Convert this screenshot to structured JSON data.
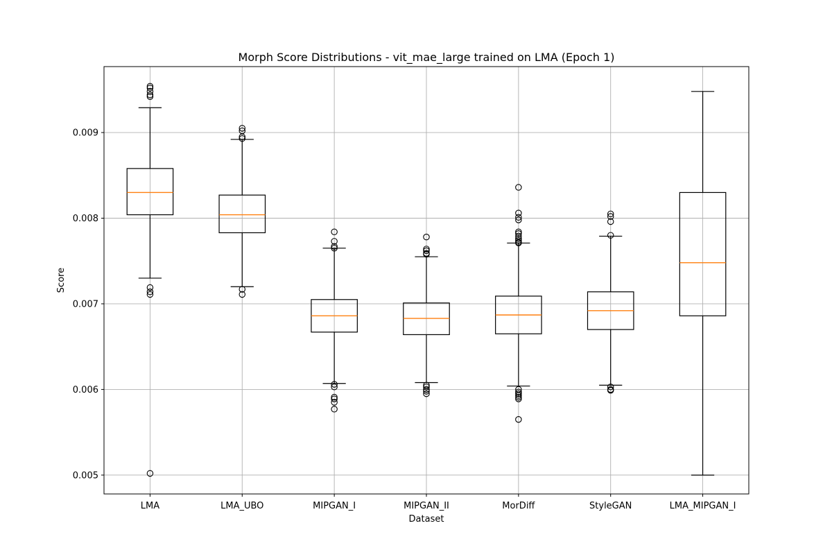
{
  "chart_data": {
    "type": "boxplot",
    "title": "Morph Score Distributions - vit_mae_large trained on LMA (Epoch 1)",
    "xlabel": "Dataset",
    "ylabel": "Score",
    "ylim": [
      0.00478,
      0.00977
    ],
    "yticks": [
      0.005,
      0.006,
      0.007,
      0.008,
      0.009
    ],
    "ytick_labels": [
      "0.005",
      "0.006",
      "0.007",
      "0.008",
      "0.009"
    ],
    "grid": true,
    "colors": {
      "box": "#000000",
      "median": "#ff7f0e",
      "grid": "#b0b0b0"
    },
    "categories": [
      "LMA",
      "LMA_UBO",
      "MIPGAN_I",
      "MIPGAN_II",
      "MorDiff",
      "StyleGAN",
      "LMA_MIPGAN_I"
    ],
    "boxes": [
      {
        "name": "LMA",
        "whislo": 0.0073,
        "q1": 0.00804,
        "med": 0.0083,
        "q3": 0.00858,
        "whishi": 0.00929,
        "fliers": [
          0.00954,
          0.00952,
          0.00948,
          0.00944,
          0.00942,
          0.00719,
          0.00714,
          0.00711,
          0.00502
        ]
      },
      {
        "name": "LMA_UBO",
        "whislo": 0.0072,
        "q1": 0.00783,
        "med": 0.00804,
        "q3": 0.00827,
        "whishi": 0.00892,
        "fliers": [
          0.00905,
          0.00902,
          0.00895,
          0.00893,
          0.00717,
          0.00711
        ]
      },
      {
        "name": "MIPGAN_I",
        "whislo": 0.00607,
        "q1": 0.00667,
        "med": 0.00686,
        "q3": 0.00705,
        "whishi": 0.00765,
        "fliers": [
          0.00784,
          0.00773,
          0.00767,
          0.00765,
          0.00606,
          0.00603,
          0.00591,
          0.00589,
          0.00585,
          0.00577
        ]
      },
      {
        "name": "MIPGAN_II",
        "whislo": 0.00608,
        "q1": 0.00664,
        "med": 0.00683,
        "q3": 0.00701,
        "whishi": 0.00755,
        "fliers": [
          0.00778,
          0.00764,
          0.00762,
          0.00759,
          0.00758,
          0.00605,
          0.00603,
          0.006,
          0.00598,
          0.00595
        ]
      },
      {
        "name": "MorDiff",
        "whislo": 0.00604,
        "q1": 0.00665,
        "med": 0.00687,
        "q3": 0.00709,
        "whishi": 0.00771,
        "fliers": [
          0.00836,
          0.00806,
          0.00801,
          0.00798,
          0.00784,
          0.00782,
          0.00779,
          0.00776,
          0.00774,
          0.00772,
          0.00771,
          0.006,
          0.00597,
          0.00595,
          0.00593,
          0.00591,
          0.00589,
          0.00565
        ]
      },
      {
        "name": "StyleGAN",
        "whislo": 0.00605,
        "q1": 0.0067,
        "med": 0.00692,
        "q3": 0.00714,
        "whishi": 0.00779,
        "fliers": [
          0.00805,
          0.00802,
          0.00796,
          0.0078,
          0.00603,
          0.006,
          0.00599
        ]
      },
      {
        "name": "LMA_MIPGAN_I",
        "whislo": 0.005,
        "q1": 0.00686,
        "med": 0.00748,
        "q3": 0.0083,
        "whishi": 0.00948,
        "fliers": []
      }
    ]
  }
}
